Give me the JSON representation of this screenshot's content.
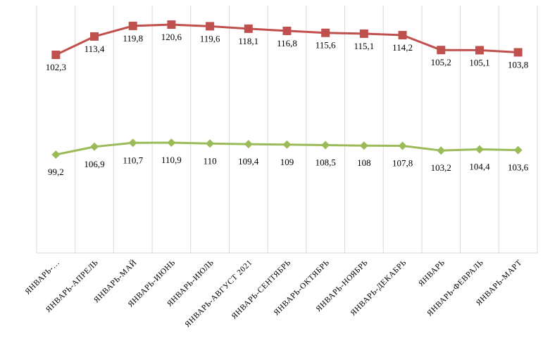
{
  "chart_data": {
    "type": "line",
    "categories": [
      "ЯНВАРЬ-…",
      "ЯНВАРЬ-АПРЕЛЬ",
      "ЯНВАРЬ-МАЙ",
      "ЯНВАРЬ-ИЮНЬ",
      "ЯНВАРЬ-ИЮЛЬ",
      "ЯНВАРЬ-АВГУСТ 2021",
      "ЯНВАРЬ-СЕНТЯБРЬ",
      "ЯНВАРЬ-ОКТЯБРЬ",
      "ЯНВАРЬ-НОЯБРЬ",
      "ЯНВАРЬ-ДЕКАБРЬ",
      "ЯНВАРЬ",
      "ЯНВАРЬ-ФЕВРАЛЬ",
      "ЯНВАРЬ-МАРТ"
    ],
    "series": [
      {
        "color": "#c0504d",
        "marker": "square",
        "values": [
          102.3,
          113.4,
          119.8,
          120.6,
          119.6,
          118.1,
          116.8,
          115.6,
          115.1,
          114.2,
          105.2,
          105.1,
          103.8
        ],
        "labels": [
          "102,3",
          "113,4",
          "119,8",
          "120,6",
          "119,6",
          "118,1",
          "116,8",
          "115,6",
          "115,1",
          "114,2",
          "105,2",
          "105,1",
          "103,8"
        ],
        "label_position": "below"
      },
      {
        "color": "#9bbb59",
        "marker": "diamond",
        "values": [
          99.2,
          106.9,
          110.7,
          110.9,
          110,
          109.4,
          109,
          108.5,
          108,
          107.8,
          103.2,
          104.4,
          103.6
        ],
        "labels": [
          "99,2",
          "106,9",
          "110,7",
          "110,9",
          "110",
          "109,4",
          "109",
          "108,5",
          "108",
          "107,8",
          "103,2",
          "104,4",
          "103,6"
        ],
        "label_position": "below"
      }
    ],
    "title": "",
    "xlabel": "",
    "ylabel": "",
    "grid": "vertical",
    "legend": "none"
  }
}
